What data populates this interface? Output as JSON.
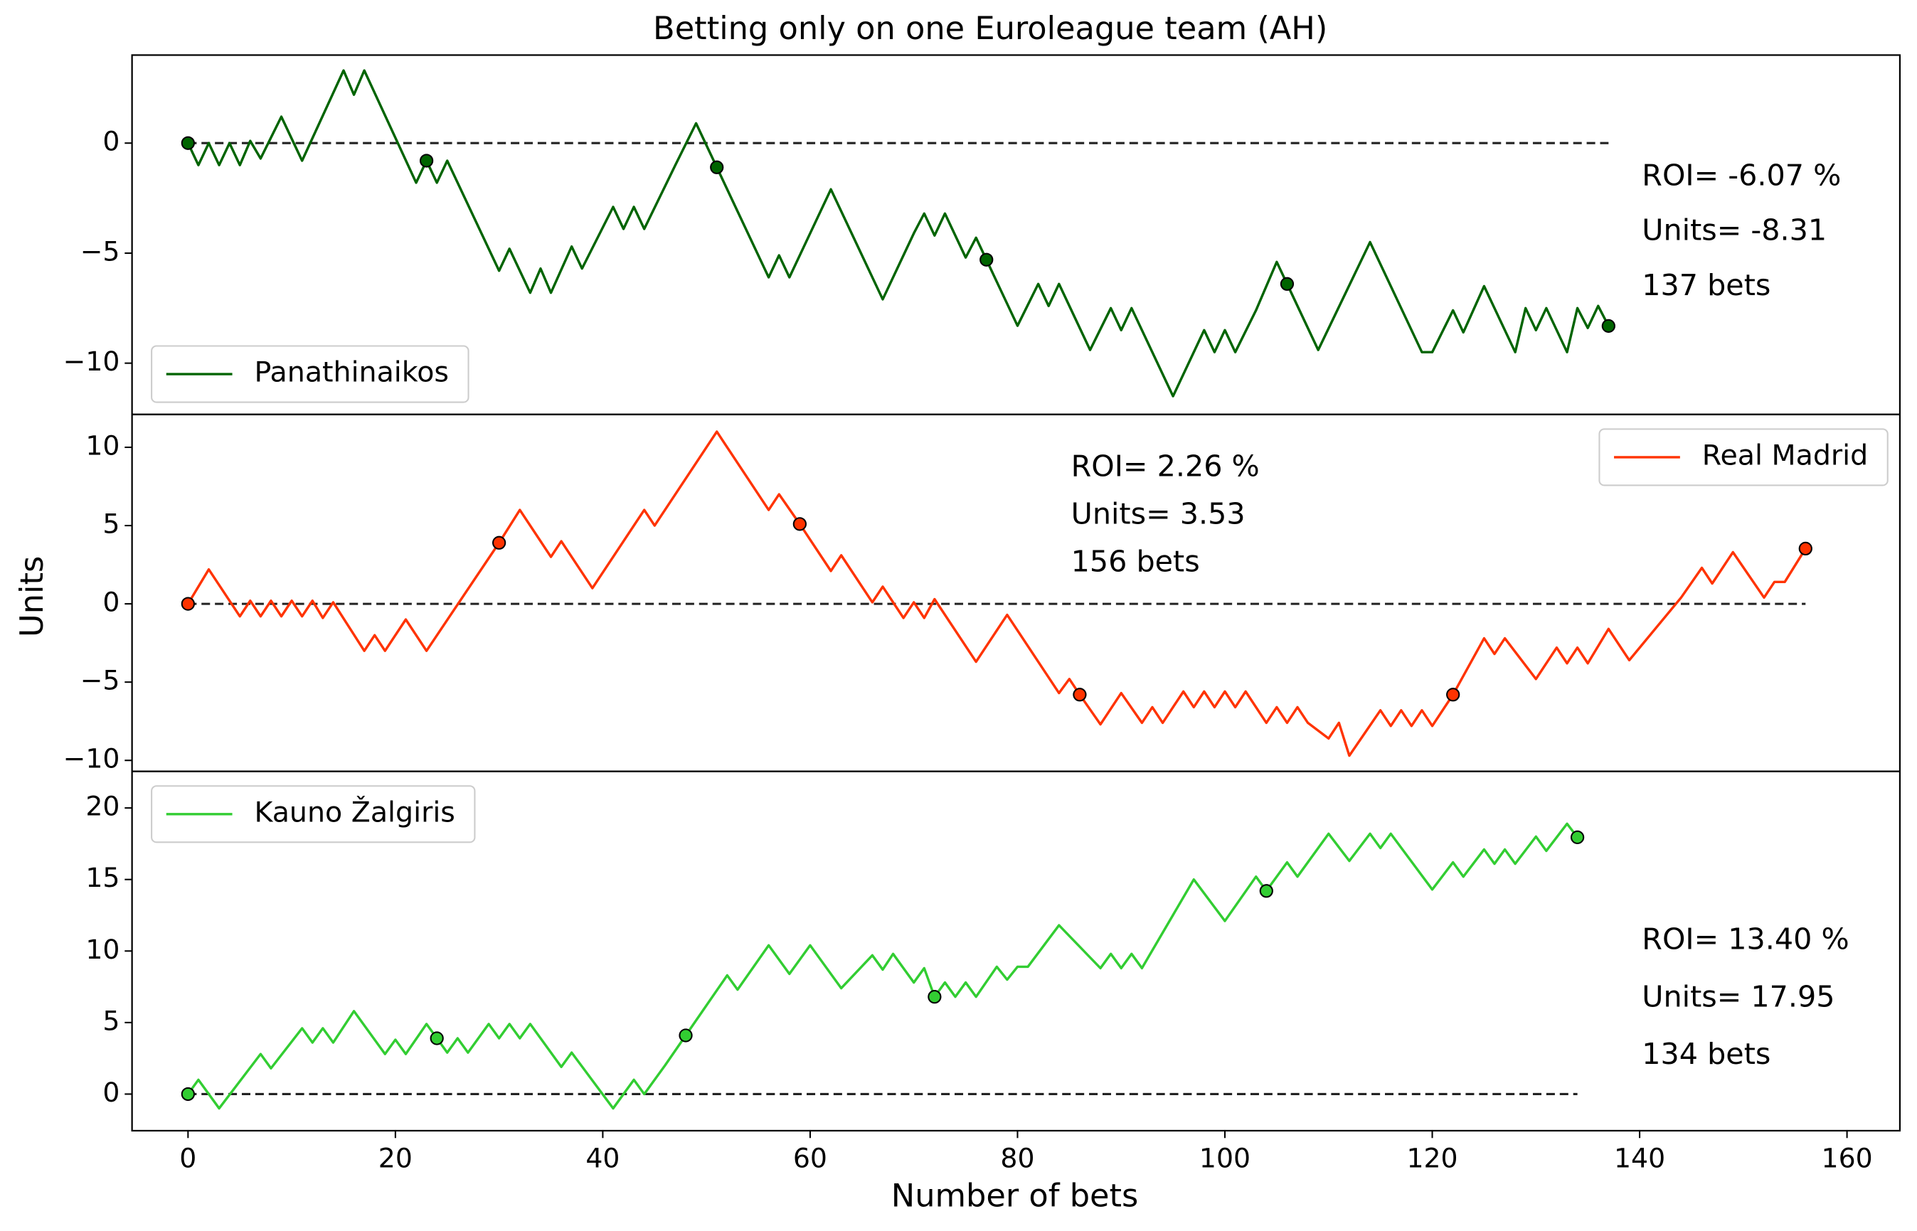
{
  "chart_data": {
    "type": "line",
    "title": "Betting only on one Euroleague team (AH)",
    "xlabel": "Number of bets",
    "ylabel": "Units",
    "xlim": [
      -5.4,
      165.1
    ],
    "xticks": [
      0,
      20,
      40,
      60,
      80,
      100,
      120,
      140,
      160
    ],
    "panels": [
      {
        "ylim": [
          -12.33,
          4.0
        ],
        "yticks": [
          {
            "value": -10,
            "label": "−10"
          },
          {
            "value": -5,
            "label": "−5"
          },
          0
        ],
        "legend": "lower left",
        "series": [
          {
            "name": "Panathinaikos",
            "color": "#006400",
            "x": [
              0,
              1,
              2,
              3,
              4,
              5,
              6,
              7,
              9,
              11,
              15,
              16,
              17,
              22,
              23,
              24,
              25,
              30,
              31,
              33,
              34,
              35,
              37,
              38,
              41,
              42,
              43,
              44,
              47,
              49,
              51,
              56,
              57,
              58,
              62,
              67,
              70,
              71,
              72,
              73,
              75,
              76,
              77,
              80,
              82,
              83,
              84,
              87,
              89,
              90,
              91,
              95,
              98,
              99,
              100,
              101,
              103,
              105,
              106,
              109,
              114,
              119,
              120,
              122,
              123,
              125,
              128,
              129,
              130,
              131,
              133,
              134,
              135,
              136,
              137
            ],
            "values": [
              0,
              -1,
              0,
              -1,
              0,
              -1,
              0.1,
              -0.7,
              1.2,
              -0.8,
              3.3,
              2.2,
              3.3,
              -1.8,
              -0.8,
              -1.8,
              -0.8,
              -5.8,
              -4.8,
              -6.8,
              -5.7,
              -6.8,
              -4.7,
              -5.7,
              -2.9,
              -3.9,
              -2.9,
              -3.9,
              -1,
              0.9,
              -1.1,
              -6.1,
              -5.1,
              -6.1,
              -2.1,
              -7.1,
              -4.1,
              -3.2,
              -4.2,
              -3.2,
              -5.2,
              -4.3,
              -5.3,
              -8.3,
              -6.4,
              -7.4,
              -6.4,
              -9.4,
              -7.5,
              -8.5,
              -7.5,
              -11.5,
              -8.5,
              -9.5,
              -8.5,
              -9.5,
              -7.6,
              -5.4,
              -6.4,
              -9.4,
              -4.5,
              -9.5,
              -9.5,
              -7.6,
              -8.6,
              -6.5,
              -9.5,
              -7.5,
              -8.5,
              -7.5,
              -9.5,
              -7.5,
              -8.4,
              -7.4,
              -8.31
            ]
          }
        ],
        "markers": {
          "x": [
            0,
            23,
            51,
            77,
            106,
            137
          ],
          "values": [
            0,
            -0.8,
            -1.1,
            -5.3,
            -6.4,
            -8.31
          ]
        },
        "annotations": [
          "ROI= -6.07 %",
          "Units= -8.31",
          "137 bets"
        ]
      },
      {
        "ylim": [
          -10.7,
          12.1
        ],
        "yticks": [
          {
            "value": -10,
            "label": "−10"
          },
          {
            "value": -5,
            "label": "−5"
          },
          0,
          5,
          10
        ],
        "legend": "upper right",
        "series": [
          {
            "name": "Real Madrid",
            "color": "#ff3300",
            "x": [
              0,
              2,
              5,
              6,
              7,
              8,
              9,
              10,
              11,
              12,
              13,
              14,
              17,
              18,
              19,
              21,
              23,
              30,
              32,
              35,
              36,
              39,
              44,
              45,
              51,
              56,
              57,
              59,
              62,
              63,
              66,
              67,
              69,
              70,
              71,
              72,
              76,
              79,
              84,
              85,
              86,
              88,
              90,
              92,
              93,
              94,
              96,
              97,
              98,
              99,
              100,
              101,
              102,
              104,
              105,
              106,
              107,
              108,
              110,
              111,
              112,
              115,
              116,
              117,
              118,
              119,
              120,
              122,
              125,
              126,
              127,
              130,
              132,
              133,
              134,
              135,
              137,
              139,
              144,
              146,
              147,
              149,
              152,
              153,
              154,
              156
            ],
            "values": [
              0,
              2.2,
              -0.8,
              0.2,
              -0.8,
              0.2,
              -0.8,
              0.2,
              -0.8,
              0.2,
              -0.9,
              0.1,
              -3,
              -2,
              -3,
              -1,
              -3,
              3.9,
              6,
              3,
              4,
              1,
              6,
              5,
              11,
              6,
              7,
              5.1,
              2.1,
              3.1,
              0.1,
              1.1,
              -0.9,
              0.1,
              -0.9,
              0.3,
              -3.7,
              -0.7,
              -5.7,
              -4.8,
              -5.8,
              -7.7,
              -5.7,
              -7.6,
              -6.6,
              -7.6,
              -5.6,
              -6.6,
              -5.6,
              -6.6,
              -5.6,
              -6.6,
              -5.6,
              -7.6,
              -6.6,
              -7.6,
              -6.6,
              -7.6,
              -8.6,
              -7.6,
              -9.7,
              -6.8,
              -7.8,
              -6.8,
              -7.8,
              -6.8,
              -7.8,
              -5.8,
              -2.2,
              -3.2,
              -2.2,
              -4.8,
              -2.8,
              -3.8,
              -2.8,
              -3.8,
              -1.6,
              -3.6,
              0.4,
              2.3,
              1.3,
              3.3,
              0.4,
              1.4,
              1.4,
              3.53
            ]
          }
        ],
        "markers": {
          "x": [
            0,
            30,
            59,
            86,
            122,
            156
          ],
          "values": [
            0,
            3.9,
            5.1,
            -5.8,
            -5.8,
            3.53
          ]
        },
        "annotations": [
          "ROI= 2.26 %",
          "Units= 3.53",
          "156 bets"
        ]
      },
      {
        "ylim": [
          -2.56,
          22.56
        ],
        "yticks": [
          0,
          5,
          10,
          15,
          20
        ],
        "legend": "upper left",
        "series": [
          {
            "name": "Kauno Žalgiris",
            "color": "#32cd32",
            "x": [
              0,
              1,
              3,
              7,
              8,
              11,
              12,
              13,
              14,
              16,
              19,
              20,
              21,
              23,
              24,
              25,
              26,
              27,
              29,
              30,
              31,
              32,
              33,
              36,
              37,
              41,
              43,
              44,
              46,
              48,
              50,
              52,
              53,
              56,
              58,
              60,
              63,
              66,
              67,
              68,
              70,
              71,
              72,
              73,
              74,
              75,
              76,
              78,
              79,
              80,
              81,
              84,
              88,
              89,
              90,
              91,
              92,
              97,
              100,
              103,
              104,
              106,
              107,
              110,
              112,
              114,
              115,
              116,
              120,
              122,
              123,
              125,
              126,
              127,
              128,
              130,
              131,
              133,
              134
            ],
            "values": [
              0,
              1,
              -1,
              2.8,
              1.8,
              4.6,
              3.6,
              4.6,
              3.6,
              5.8,
              2.8,
              3.8,
              2.8,
              4.9,
              3.9,
              2.9,
              3.9,
              2.9,
              4.9,
              3.9,
              4.9,
              3.9,
              4.9,
              1.9,
              2.9,
              -1,
              1,
              0,
              2,
              4.1,
              6.2,
              8.3,
              7.3,
              10.4,
              8.4,
              10.4,
              7.4,
              9.7,
              8.7,
              9.8,
              7.8,
              8.8,
              6.8,
              7.8,
              6.8,
              7.8,
              6.8,
              8.9,
              8,
              8.9,
              8.9,
              11.8,
              8.8,
              9.8,
              8.8,
              9.8,
              8.8,
              15,
              12.1,
              15.2,
              14.2,
              16.2,
              15.2,
              18.2,
              16.3,
              18.2,
              17.2,
              18.2,
              14.3,
              16.2,
              15.2,
              17.1,
              16.1,
              17.1,
              16.1,
              18,
              17,
              18.9,
              17.95
            ]
          }
        ],
        "markers": {
          "x": [
            0,
            24,
            48,
            72,
            104,
            134
          ],
          "values": [
            0,
            3.9,
            4.1,
            6.8,
            14.2,
            17.95
          ]
        },
        "annotations": [
          "ROI= 13.40 %",
          "Units= 17.95",
          "134 bets"
        ]
      }
    ]
  }
}
